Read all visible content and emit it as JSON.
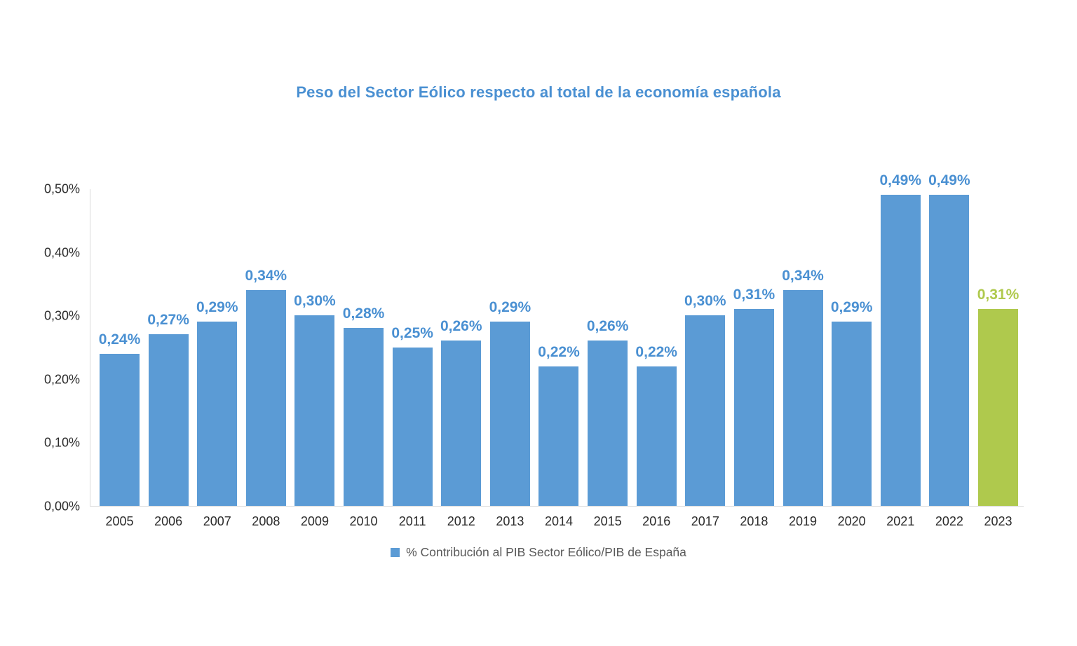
{
  "chart_data": {
    "type": "bar",
    "title": "Peso del Sector Eólico respecto al total de la economía española",
    "xlabel": "",
    "ylabel": "",
    "ylim": [
      0,
      0.5
    ],
    "grid": false,
    "legend_position": "bottom",
    "legend": "% Contribución al PIB Sector Eólico/PIB de España",
    "yticks_top_to_bottom": [
      "0,50%",
      "0,40%",
      "0,30%",
      "0,20%",
      "0,10%",
      "0,00%"
    ],
    "categories": [
      "2005",
      "2006",
      "2007",
      "2008",
      "2009",
      "2010",
      "2011",
      "2012",
      "2013",
      "2014",
      "2015",
      "2016",
      "2017",
      "2018",
      "2019",
      "2020",
      "2021",
      "2022",
      "2023"
    ],
    "values": [
      0.24,
      0.27,
      0.29,
      0.34,
      0.3,
      0.28,
      0.25,
      0.26,
      0.29,
      0.22,
      0.26,
      0.22,
      0.3,
      0.31,
      0.34,
      0.29,
      0.49,
      0.49,
      0.31
    ],
    "value_labels": [
      "0,24%",
      "0,27%",
      "0,29%",
      "0,34%",
      "0,30%",
      "0,28%",
      "0,25%",
      "0,26%",
      "0,29%",
      "0,22%",
      "0,26%",
      "0,22%",
      "0,30%",
      "0,31%",
      "0,34%",
      "0,29%",
      "0,49%",
      "0,49%",
      "0,31%"
    ],
    "highlight_index": 18,
    "colors": {
      "bar": "#5B9BD5",
      "highlight_bar": "#AFC94D",
      "value_label": "#4A90D2",
      "highlight_value_label": "#AFC94D",
      "title": "#4A90D2",
      "axis_line": "#D9D9D9",
      "tick_label": "#2B2B2B",
      "legend_text": "#595959"
    }
  }
}
